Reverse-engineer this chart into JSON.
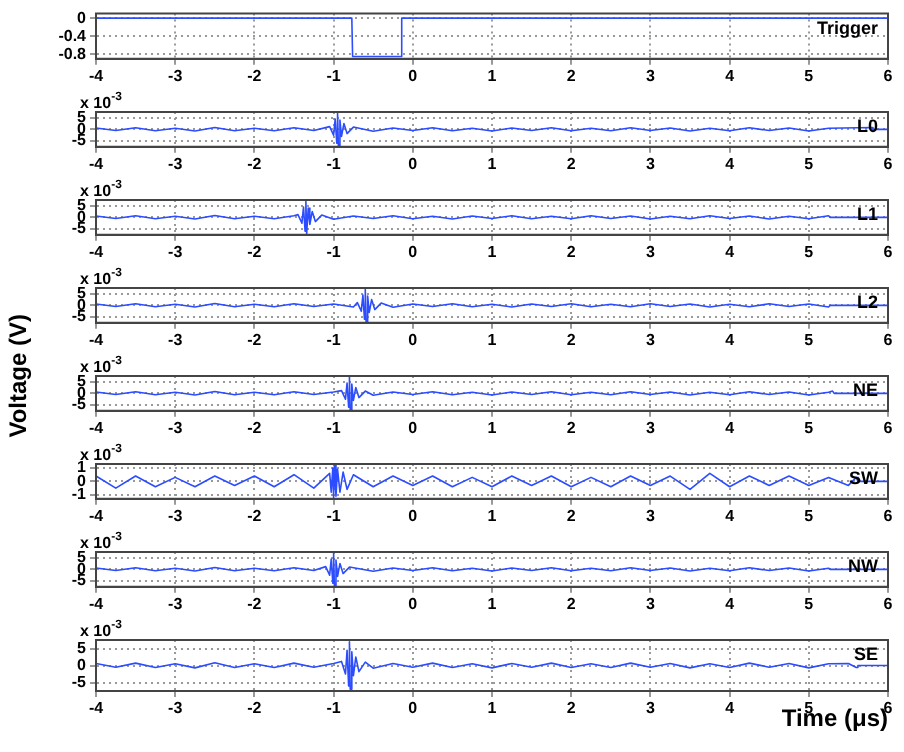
{
  "chart_data": [
    {
      "type": "line",
      "annotations": [
        "Trigger"
      ],
      "x": [
        -4,
        -0.77,
        -0.76,
        -0.15,
        -0.14,
        6
      ],
      "series": [
        {
          "color": "#2b4cff",
          "values": [
            0,
            0,
            -0.85,
            -0.85,
            0,
            0
          ]
        }
      ],
      "xlim": [
        -4,
        6
      ],
      "xticks": [
        -4,
        -3,
        -2,
        -1,
        0,
        1,
        2,
        3,
        4,
        5,
        6
      ],
      "ylim": [
        -0.9,
        0.1
      ],
      "yticks": [
        -0.8,
        -0.4,
        0
      ],
      "grid": true,
      "legend": false
    },
    {
      "type": "line",
      "annotations": [
        "L0",
        "x 10$^{-3}$"
      ],
      "x": [
        -4,
        -3.75,
        -3.5,
        -3.25,
        -3,
        -2.75,
        -2.5,
        -2.25,
        -2,
        -1.75,
        -1.5,
        -1.25,
        -1.05,
        -1,
        -0.98,
        -0.96,
        -0.95,
        -0.94,
        -0.92,
        -0.9,
        -0.87,
        -0.83,
        -0.75,
        -0.5,
        -0.25,
        0,
        0.25,
        0.5,
        0.75,
        1,
        1.25,
        1.5,
        1.75,
        2,
        2.25,
        2.5,
        2.75,
        3,
        3.25,
        3.5,
        3.75,
        4,
        4.25,
        4.5,
        4.75,
        5,
        5.25,
        5.8,
        5.81,
        6
      ],
      "series": [
        {
          "color": "#2b4cff",
          "values": [
            0.6,
            -0.5,
            0.7,
            -0.6,
            0.5,
            -0.7,
            0.8,
            -0.6,
            0.5,
            -0.6,
            0.7,
            -0.5,
            1.2,
            -2.5,
            4.5,
            -6,
            7,
            -7,
            4,
            -3,
            2.5,
            -1.8,
            1,
            -0.8,
            0.6,
            -0.5,
            0.7,
            -0.6,
            0.5,
            -0.7,
            0.6,
            -0.5,
            0.7,
            -0.6,
            0.5,
            -0.6,
            0.7,
            -0.5,
            0.6,
            -0.7,
            0.5,
            -0.6,
            0.7,
            -0.5,
            0.6,
            -0.7,
            0.5,
            0.8,
            0,
            0
          ]
        }
      ],
      "xlim": [
        -4,
        6
      ],
      "xticks": [
        -4,
        -3,
        -2,
        -1,
        0,
        1,
        2,
        3,
        4,
        5,
        6
      ],
      "ylim": [
        -7.5,
        7.5
      ],
      "yticks": [
        -5,
        0,
        5
      ],
      "grid": true,
      "legend": false
    },
    {
      "type": "line",
      "annotations": [
        "L1",
        "x 10$^{-3}$"
      ],
      "x": [
        -4,
        -3.75,
        -3.5,
        -3.25,
        -3,
        -2.75,
        -2.5,
        -2.25,
        -2,
        -1.75,
        -1.5,
        -1.45,
        -1.4,
        -1.38,
        -1.36,
        -1.35,
        -1.34,
        -1.32,
        -1.3,
        -1.27,
        -1.23,
        -1.15,
        -1,
        -0.75,
        -0.5,
        -0.25,
        0,
        0.25,
        0.5,
        0.75,
        1,
        1.25,
        1.5,
        1.75,
        2,
        2.25,
        2.5,
        2.75,
        3,
        3.25,
        3.5,
        3.75,
        4,
        4.25,
        4.5,
        4.75,
        5,
        5.25,
        5.27,
        6
      ],
      "series": [
        {
          "color": "#2b4cff",
          "values": [
            0.6,
            -0.5,
            0.7,
            -0.6,
            0.5,
            -0.7,
            0.8,
            -0.6,
            0.5,
            -0.6,
            0.7,
            1.2,
            -2.5,
            4.5,
            -6,
            7,
            -7,
            4,
            -3,
            2.5,
            -1.8,
            1,
            -0.8,
            0.6,
            -0.5,
            0.7,
            -0.6,
            0.5,
            -0.7,
            0.6,
            -0.5,
            0.7,
            -0.6,
            0.5,
            -0.6,
            0.7,
            -0.5,
            0.6,
            -0.7,
            0.5,
            -0.6,
            0.7,
            -0.5,
            0.6,
            -0.7,
            0.5,
            -0.6,
            0.7,
            0,
            0
          ]
        }
      ],
      "xlim": [
        -4,
        6
      ],
      "xticks": [
        -4,
        -3,
        -2,
        -1,
        0,
        1,
        2,
        3,
        4,
        5,
        6
      ],
      "ylim": [
        -7.5,
        7.5
      ],
      "yticks": [
        -5,
        0,
        5
      ],
      "grid": true,
      "legend": false
    },
    {
      "type": "line",
      "annotations": [
        "L2",
        "x 10$^{-3}$"
      ],
      "ylabel": "Voltage (V)",
      "x": [
        -4,
        -3.75,
        -3.5,
        -3.25,
        -3,
        -2.75,
        -2.5,
        -2.25,
        -2,
        -1.75,
        -1.5,
        -1.25,
        -1,
        -0.75,
        -0.7,
        -0.65,
        -0.63,
        -0.61,
        -0.6,
        -0.59,
        -0.57,
        -0.55,
        -0.52,
        -0.48,
        -0.4,
        -0.25,
        0,
        0.25,
        0.5,
        0.75,
        1,
        1.25,
        1.5,
        1.75,
        2,
        2.25,
        2.5,
        2.75,
        3,
        3.25,
        3.5,
        3.75,
        4,
        4.25,
        4.5,
        4.75,
        5,
        5.25,
        5.27,
        6
      ],
      "series": [
        {
          "color": "#2b4cff",
          "values": [
            0.6,
            -0.5,
            0.7,
            -0.6,
            0.5,
            -0.7,
            0.8,
            -0.6,
            0.5,
            -0.6,
            0.7,
            -0.5,
            0.6,
            -0.7,
            1.2,
            -2.5,
            4.5,
            -6,
            7,
            -7,
            4,
            -3,
            2.5,
            -1.8,
            1,
            -0.8,
            0.6,
            -0.5,
            0.7,
            -0.6,
            0.5,
            -0.7,
            0.6,
            -0.5,
            0.7,
            -0.6,
            0.5,
            -0.6,
            0.7,
            -0.5,
            0.6,
            -0.7,
            0.5,
            -0.6,
            0.7,
            -0.5,
            0.6,
            -0.7,
            0,
            0
          ]
        }
      ],
      "xlim": [
        -4,
        6
      ],
      "xticks": [
        -4,
        -3,
        -2,
        -1,
        0,
        1,
        2,
        3,
        4,
        5,
        6
      ],
      "ylim": [
        -7.5,
        7.5
      ],
      "yticks": [
        -5,
        0,
        5
      ],
      "grid": true,
      "legend": false
    },
    {
      "type": "line",
      "annotations": [
        "NE",
        "x 10$^{-3}$"
      ],
      "x": [
        -4,
        -3.75,
        -3.5,
        -3.25,
        -3,
        -2.75,
        -2.5,
        -2.25,
        -2,
        -1.75,
        -1.5,
        -1.25,
        -1,
        -0.9,
        -0.85,
        -0.83,
        -0.81,
        -0.8,
        -0.79,
        -0.77,
        -0.75,
        -0.72,
        -0.68,
        -0.6,
        -0.5,
        -0.25,
        0,
        0.25,
        0.5,
        0.75,
        1,
        1.25,
        1.5,
        1.75,
        2,
        2.25,
        2.5,
        2.75,
        3,
        3.25,
        3.5,
        3.75,
        4,
        4.25,
        4.5,
        4.75,
        5,
        5.25,
        5.3,
        5.32,
        6
      ],
      "series": [
        {
          "color": "#2b4cff",
          "values": [
            0.6,
            -0.5,
            0.7,
            -0.6,
            0.5,
            -0.7,
            0.8,
            -0.6,
            0.5,
            -0.6,
            0.7,
            -0.5,
            0.6,
            1.2,
            -2.5,
            4.5,
            -6,
            7,
            -7,
            4,
            -3,
            2.5,
            -1.8,
            1,
            -0.8,
            0.6,
            -0.5,
            0.7,
            -0.6,
            0.5,
            -0.7,
            0.6,
            -0.5,
            0.7,
            -0.6,
            0.5,
            -0.6,
            0.7,
            -0.5,
            0.6,
            -0.7,
            0.5,
            -0.6,
            0.7,
            -0.5,
            0.6,
            -0.7,
            0.5,
            1,
            0,
            0
          ]
        }
      ],
      "xlim": [
        -4,
        6
      ],
      "xticks": [
        -4,
        -3,
        -2,
        -1,
        0,
        1,
        2,
        3,
        4,
        5,
        6
      ],
      "ylim": [
        -7.5,
        7.5
      ],
      "yticks": [
        -5,
        0,
        5
      ],
      "grid": true,
      "legend": false
    },
    {
      "type": "line",
      "annotations": [
        "SW",
        "x 10$^{-3}$"
      ],
      "x": [
        -4,
        -3.75,
        -3.5,
        -3.25,
        -3,
        -2.75,
        -2.5,
        -2.25,
        -2,
        -1.75,
        -1.5,
        -1.25,
        -1.05,
        -1.03,
        -1.01,
        -1,
        -0.99,
        -0.97,
        -0.95,
        -0.92,
        -0.88,
        -0.83,
        -0.75,
        -0.5,
        -0.25,
        0,
        0.25,
        0.5,
        0.75,
        1,
        1.25,
        1.5,
        1.75,
        2,
        2.25,
        2.5,
        2.75,
        3,
        3.25,
        3.5,
        3.75,
        4,
        4.25,
        4.5,
        4.75,
        5,
        5.25,
        5.5,
        5.6,
        5.62,
        6
      ],
      "series": [
        {
          "color": "#2b4cff",
          "values": [
            0.4,
            -0.5,
            0.4,
            -0.4,
            0.3,
            -0.4,
            0.4,
            -0.3,
            0.4,
            -0.4,
            0.5,
            -0.5,
            0.6,
            -0.8,
            1,
            -1.2,
            1.2,
            -1.1,
            0.9,
            -0.8,
            0.7,
            -0.6,
            0.5,
            -0.4,
            0.4,
            -0.3,
            0.4,
            -0.4,
            0.3,
            -0.4,
            0.4,
            -0.3,
            0.4,
            -0.4,
            0.3,
            -0.4,
            0.4,
            -0.3,
            0.4,
            -0.6,
            0.6,
            -0.4,
            0.4,
            -0.3,
            0.4,
            -0.3,
            0.3,
            -0.3,
            0.3,
            0,
            0
          ]
        }
      ],
      "xlim": [
        -4,
        6
      ],
      "xticks": [
        -4,
        -3,
        -2,
        -1,
        0,
        1,
        2,
        3,
        4,
        5,
        6
      ],
      "ylim": [
        -1.3,
        1.3
      ],
      "yticks": [
        -1,
        0,
        1
      ],
      "grid": true,
      "legend": false
    },
    {
      "type": "line",
      "annotations": [
        "NW",
        "x 10$^{-3}$"
      ],
      "x": [
        -4,
        -3.75,
        -3.5,
        -3.25,
        -3,
        -2.75,
        -2.5,
        -2.25,
        -2,
        -1.75,
        -1.5,
        -1.25,
        -1.1,
        -1.05,
        -1.03,
        -1.01,
        -1,
        -0.99,
        -0.97,
        -0.95,
        -0.92,
        -0.88,
        -0.8,
        -0.5,
        -0.25,
        0,
        0.25,
        0.5,
        0.75,
        1,
        1.25,
        1.5,
        1.75,
        2,
        2.25,
        2.5,
        2.75,
        3,
        3.25,
        3.5,
        3.75,
        4,
        4.25,
        4.5,
        4.75,
        5,
        5.25,
        5.27,
        6
      ],
      "series": [
        {
          "color": "#2b4cff",
          "values": [
            0.6,
            -0.5,
            0.7,
            -0.6,
            0.5,
            -0.7,
            0.8,
            -0.6,
            0.5,
            -0.6,
            0.7,
            -0.5,
            1.2,
            -2.5,
            4.5,
            -6,
            7,
            -7,
            4,
            -3,
            2.5,
            -1.8,
            1,
            -0.8,
            0.6,
            -0.5,
            0.7,
            -0.6,
            0.5,
            -0.7,
            0.6,
            -0.5,
            0.7,
            -0.6,
            0.5,
            -0.6,
            0.7,
            -0.5,
            0.6,
            -0.7,
            0.5,
            -0.6,
            0.7,
            -0.5,
            0.6,
            -0.7,
            0.5,
            0,
            0
          ]
        }
      ],
      "xlim": [
        -4,
        6
      ],
      "xticks": [
        -4,
        -3,
        -2,
        -1,
        0,
        1,
        2,
        3,
        4,
        5,
        6
      ],
      "ylim": [
        -7.5,
        7.5
      ],
      "yticks": [
        -5,
        0,
        5
      ],
      "grid": true,
      "legend": false
    },
    {
      "type": "line",
      "annotations": [
        "SE",
        "x 10$^{-3}$"
      ],
      "xlabel": "Time (μs)",
      "x": [
        -4,
        -3.75,
        -3.5,
        -3.25,
        -3,
        -2.75,
        -2.5,
        -2.25,
        -2,
        -1.75,
        -1.5,
        -1.25,
        -1,
        -0.9,
        -0.85,
        -0.83,
        -0.81,
        -0.8,
        -0.79,
        -0.77,
        -0.75,
        -0.72,
        -0.68,
        -0.6,
        -0.5,
        -0.25,
        0,
        0.25,
        0.5,
        0.75,
        1,
        1.25,
        1.5,
        1.75,
        2,
        2.25,
        2.5,
        2.75,
        3,
        3.25,
        3.5,
        3.75,
        4,
        4.25,
        4.5,
        4.75,
        5,
        5.25,
        5.5,
        5.6,
        5.62,
        6
      ],
      "series": [
        {
          "color": "#2b4cff",
          "values": [
            0.6,
            -0.5,
            0.7,
            -0.6,
            0.5,
            -0.7,
            0.8,
            -0.6,
            0.5,
            -0.6,
            0.7,
            -0.5,
            0.6,
            1.2,
            -2.5,
            4.5,
            -6,
            7,
            -7,
            4,
            -3,
            2.5,
            -1.8,
            1,
            -0.8,
            0.6,
            -0.5,
            0.7,
            -0.6,
            0.5,
            -0.7,
            0.6,
            -0.5,
            0.7,
            -0.6,
            0.5,
            -0.6,
            0.7,
            -0.5,
            0.6,
            -0.7,
            0.5,
            -0.6,
            0.7,
            -0.5,
            0.6,
            -0.7,
            0.5,
            0.6,
            -0.6,
            0,
            0
          ]
        }
      ],
      "xlim": [
        -4,
        6
      ],
      "xticks": [
        -4,
        -3,
        -2,
        -1,
        0,
        1,
        2,
        3,
        4,
        5,
        6
      ],
      "ylim": [
        -7.5,
        7.5
      ],
      "yticks": [
        -5,
        0,
        5
      ],
      "grid": true,
      "legend": false
    }
  ]
}
